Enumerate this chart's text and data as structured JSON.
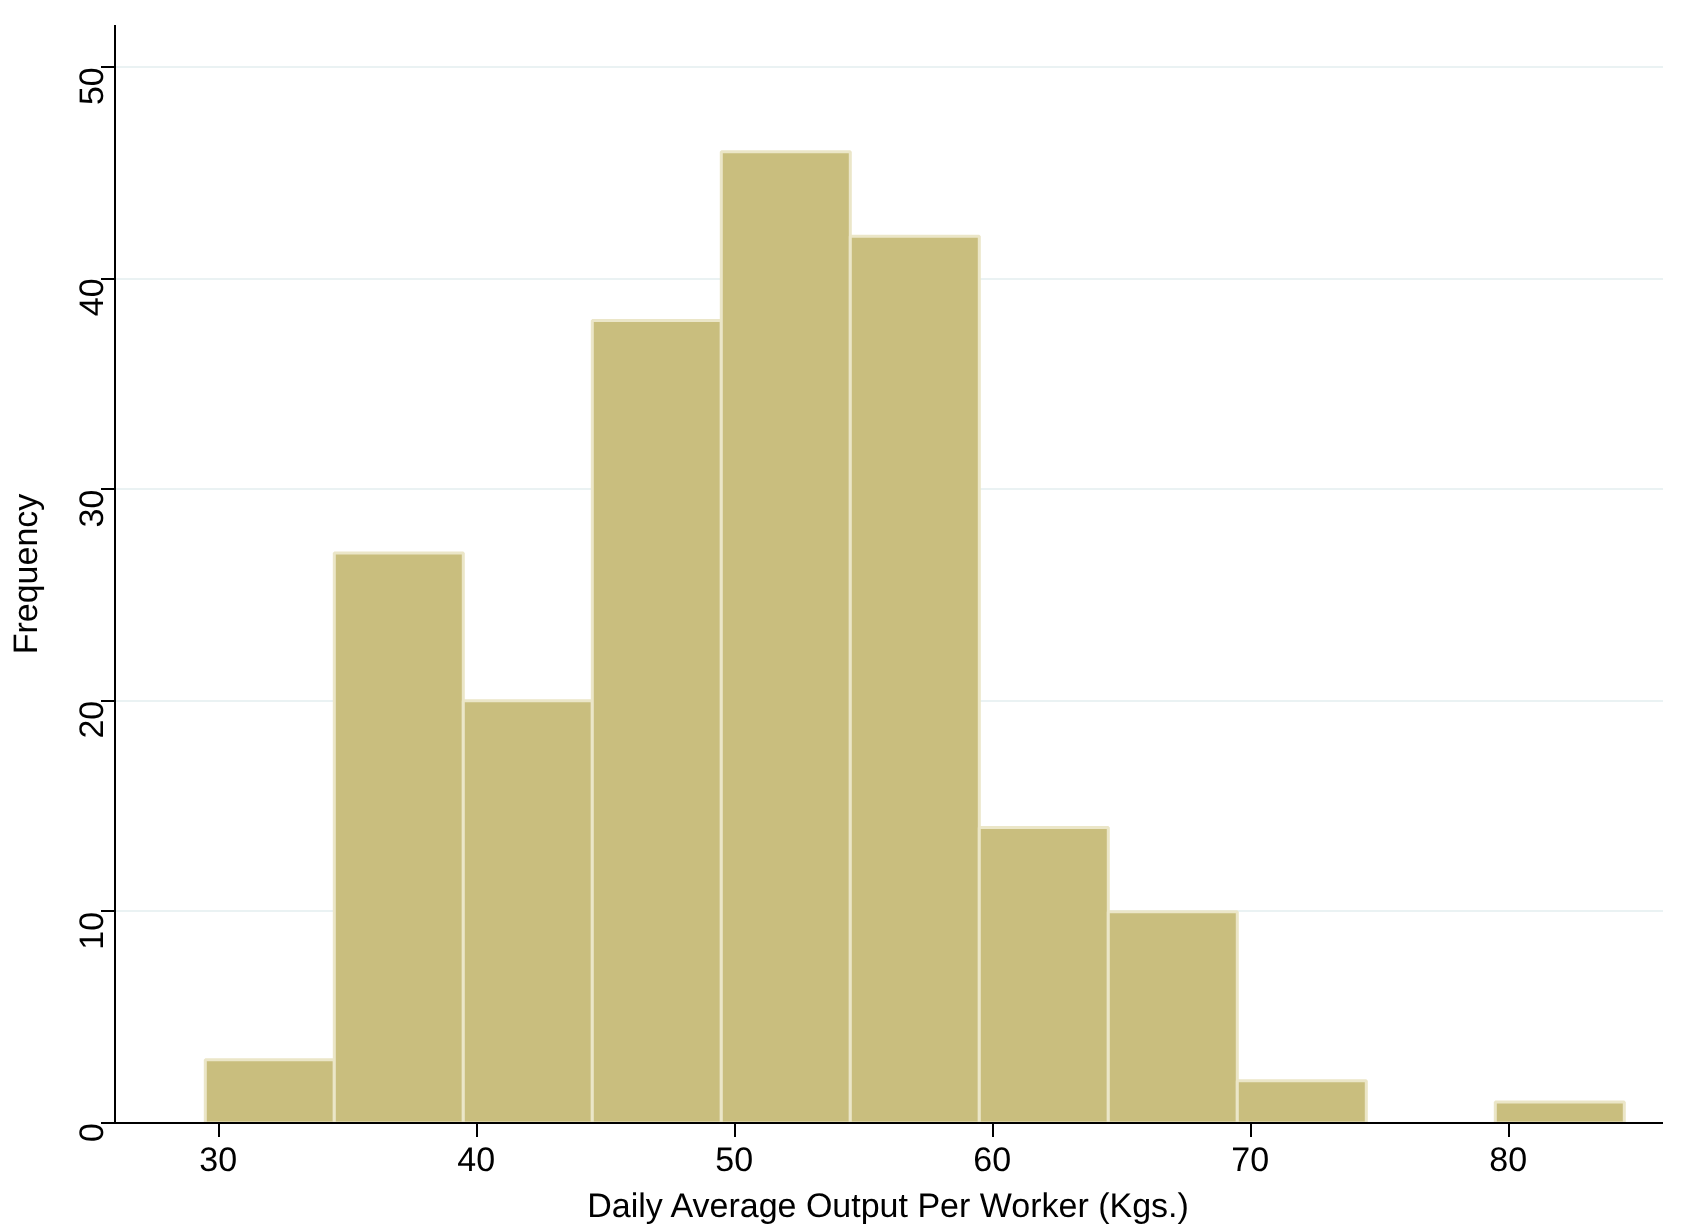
{
  "chart_data": {
    "type": "histogram",
    "xlabel": "Daily Average Output Per Worker (Kgs.)",
    "ylabel": "Frequency",
    "bins": [
      29.5,
      34.5,
      39.5,
      44.5,
      49.5,
      54.5,
      59.5,
      64.5,
      69.5,
      74.5,
      79.5,
      84.5
    ],
    "values": [
      3,
      27,
      20,
      38,
      46,
      42,
      14,
      10,
      2,
      0,
      1
    ],
    "color": "#c9be7e",
    "xlim": [
      26,
      86
    ],
    "ylim": [
      0,
      52
    ],
    "xticks": [
      30,
      40,
      50,
      60,
      70,
      80
    ],
    "yticks": [
      0,
      10,
      20,
      30,
      40,
      50
    ],
    "grid": "y"
  }
}
